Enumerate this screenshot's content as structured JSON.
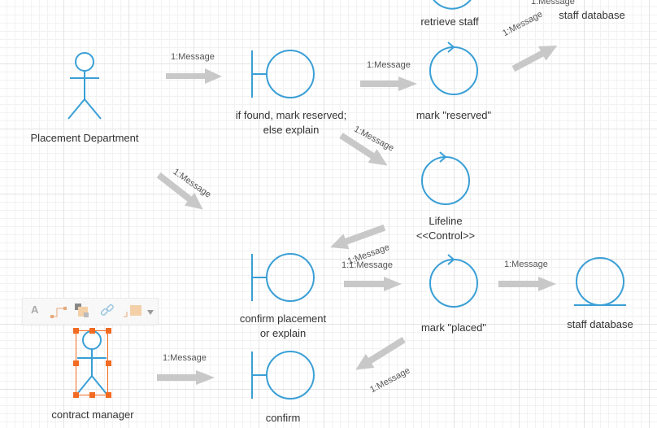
{
  "diagram": {
    "actors": [
      {
        "id": "placement",
        "label": "Placement Department"
      },
      {
        "id": "contract",
        "label": "contract manager"
      }
    ],
    "boundaries": [
      {
        "id": "b1",
        "label": "if found, mark reserved;\nelse explain"
      },
      {
        "id": "b2",
        "label": "confirm placement\nor explain"
      },
      {
        "id": "b3",
        "label": "confirm"
      }
    ],
    "controls": [
      {
        "id": "c0",
        "label": "retrieve staff"
      },
      {
        "id": "c1",
        "label": "mark \"reserved\""
      },
      {
        "id": "c2",
        "label": "Lifeline\n<<Control>>"
      },
      {
        "id": "c3",
        "label": "mark \"placed\""
      }
    ],
    "entities": [
      {
        "id": "e0",
        "label": "staff database"
      },
      {
        "id": "e1",
        "label": "staff database"
      }
    ],
    "messages": [
      {
        "id": "m1",
        "text": "1:Message"
      },
      {
        "id": "m2",
        "text": "1:Message"
      },
      {
        "id": "m3",
        "text": "1:Message"
      },
      {
        "id": "m4",
        "text": "1:Message"
      },
      {
        "id": "m5",
        "text": "1:Message"
      },
      {
        "id": "m6",
        "text": "1:Message"
      },
      {
        "id": "m7",
        "text": "1:1:Message"
      },
      {
        "id": "m8",
        "text": "1:Message"
      },
      {
        "id": "m9",
        "text": "1:Message"
      },
      {
        "id": "m10",
        "text": "1:Message"
      },
      {
        "id": "m11",
        "text": "1:Message"
      }
    ],
    "colors": {
      "shape": "#3a9fd6",
      "arrow": "#c8c8c8",
      "selection": "#f26b22"
    }
  },
  "toolbar": {
    "text_tool_label": "A",
    "items": [
      "text-icon",
      "connector-icon",
      "fill-icon",
      "link-icon",
      "style-icon",
      "dropdown-icon"
    ]
  }
}
